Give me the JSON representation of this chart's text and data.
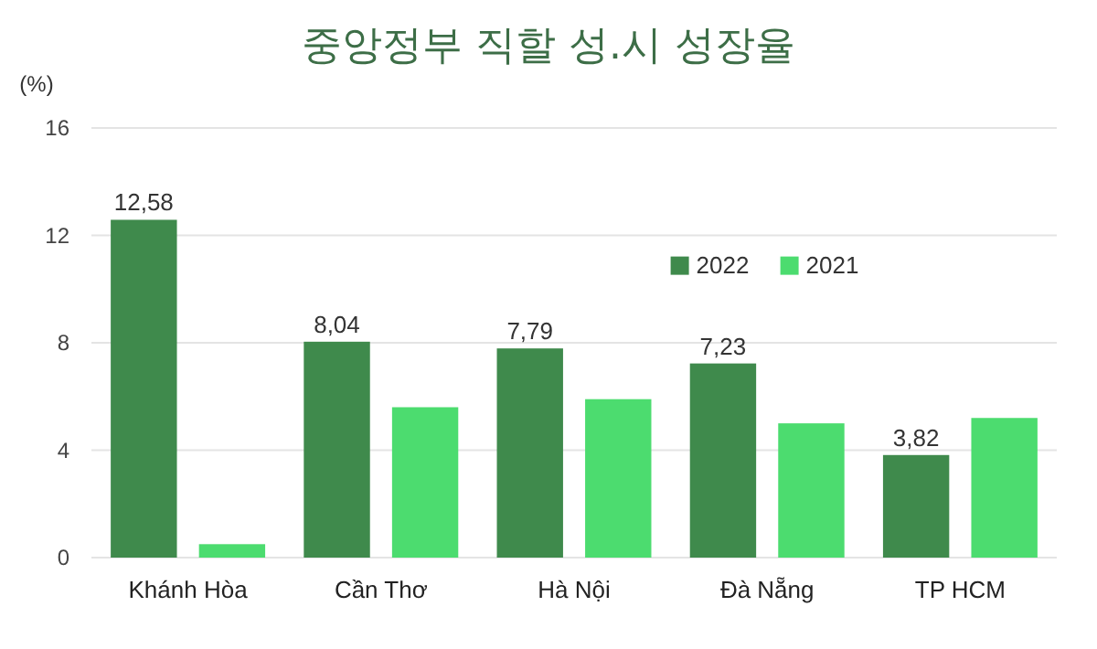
{
  "chart_data": {
    "type": "bar",
    "title": "중앙정부 직할 성.시 성장율",
    "ylabel": "(%)",
    "categories": [
      "Khánh Hòa",
      "Cần Thơ",
      "Hà Nội",
      "Đà Nẵng",
      "TP HCM"
    ],
    "series": [
      {
        "name": "2022",
        "color": "#3f8a4c",
        "values": [
          12.58,
          8.04,
          7.79,
          7.23,
          3.82
        ],
        "value_labels": [
          "12,58",
          "8,04",
          "7,79",
          "7,23",
          "3,82"
        ]
      },
      {
        "name": "2021",
        "color": "#4cdc6f",
        "values": [
          0.5,
          5.6,
          5.9,
          5.0,
          5.2
        ]
      }
    ],
    "ylim": [
      0,
      16
    ],
    "yticks": [
      0,
      4,
      8,
      12,
      16
    ],
    "grid": "y",
    "legend": "right"
  }
}
